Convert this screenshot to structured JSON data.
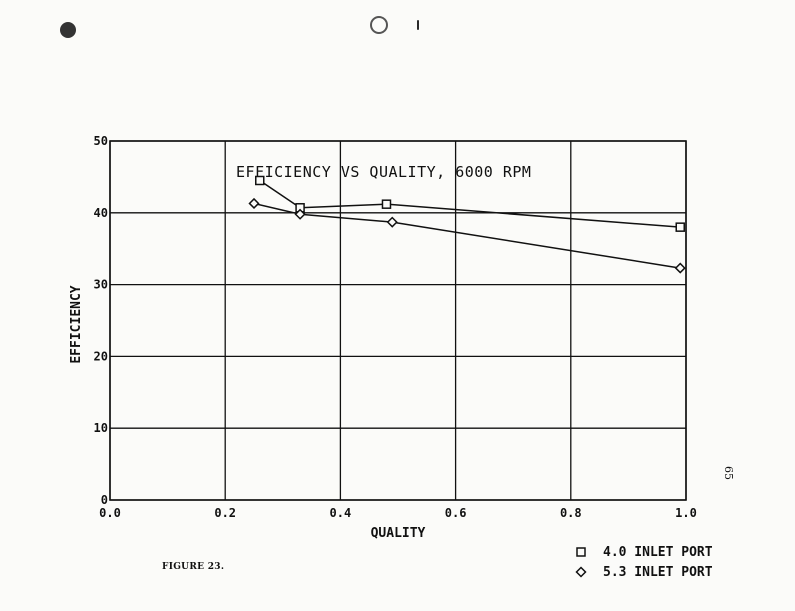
{
  "figure_caption": "FIGURE 23.",
  "page_number": "65",
  "chart_data": {
    "type": "line",
    "title": "EFFICIENCY VS QUALITY, 6000 RPM",
    "xlabel": "QUALITY",
    "ylabel": "EFFICIENCY",
    "xlim": [
      0.0,
      1.0
    ],
    "ylim": [
      0,
      50
    ],
    "xticks": [
      "0.0",
      "0.2",
      "0.4",
      "0.6",
      "0.8",
      "1.0"
    ],
    "yticks": [
      "0",
      "10",
      "20",
      "30",
      "40",
      "50"
    ],
    "grid": true,
    "legend_position": "bottom-right, outside plot",
    "series": [
      {
        "name": "4.0 INLET PORT",
        "marker": "square",
        "x": [
          0.26,
          0.33,
          0.48,
          0.99
        ],
        "y": [
          44.5,
          40.7,
          41.2,
          38.0
        ]
      },
      {
        "name": "5.3 INLET PORT",
        "marker": "diamond",
        "x": [
          0.25,
          0.33,
          0.49,
          0.99
        ],
        "y": [
          41.3,
          39.8,
          38.7,
          32.3
        ]
      }
    ]
  }
}
